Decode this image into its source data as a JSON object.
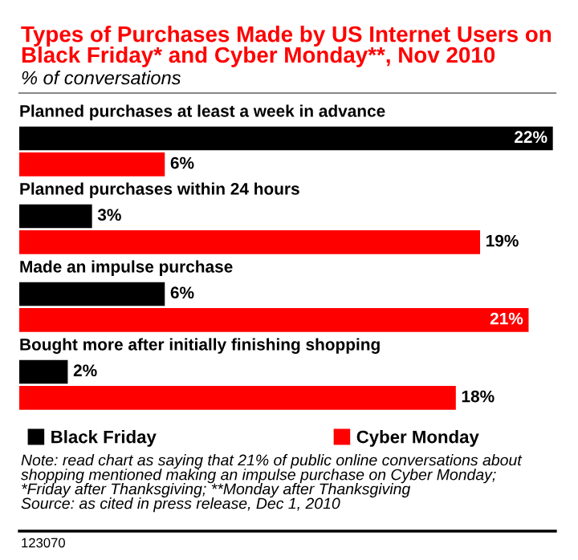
{
  "chart_data": {
    "type": "bar",
    "orientation": "horizontal",
    "title": "Types of Purchases Made by US Internet Users on Black Friday* and Cyber Monday**, Nov 2010",
    "subtitle": "% of conversations",
    "categories": [
      "Planned purchases at least a week in advance",
      "Planned purchases within 24 hours",
      "Made an impulse purchase",
      "Bought more after initially finishing shopping"
    ],
    "series": [
      {
        "name": "Black Friday",
        "color": "#000000",
        "values": [
          22,
          3,
          6,
          2
        ],
        "value_labels": [
          "22%",
          "3%",
          "6%",
          "2%"
        ]
      },
      {
        "name": "Cyber Monday",
        "color": "#ff0000",
        "values": [
          6,
          19,
          21,
          18
        ],
        "value_labels": [
          "6%",
          "19%",
          "21%",
          "18%"
        ]
      }
    ],
    "legend": "bottom",
    "annotations": [
      "Note: read chart as saying that 21% of public online conversations about shopping mentioned making an impulse purchase on Cyber Monday;",
      "*Friday after Thanksgiving; **Monday after Thanksgiving",
      "Source: as cited in press release, Dec 1, 2010",
      "123070"
    ]
  }
}
